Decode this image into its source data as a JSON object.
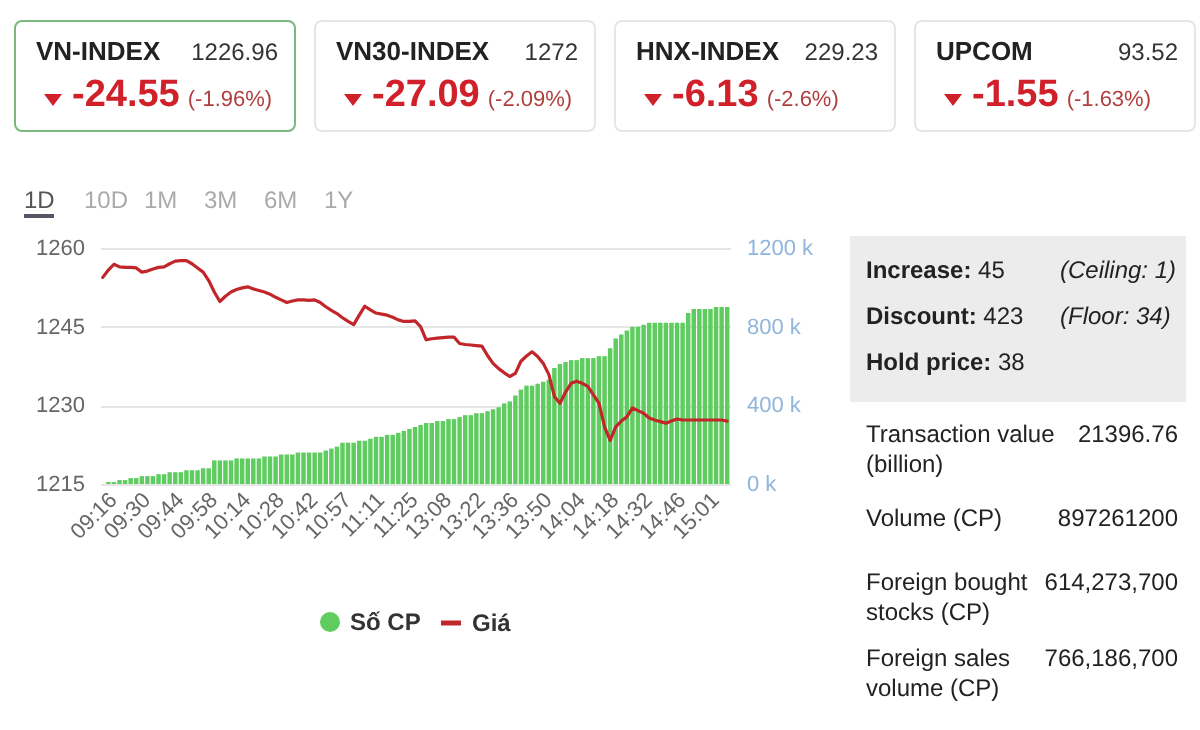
{
  "chart_data": [
    {
      "type": "other",
      "annotations": [
        "VN-INDEX",
        "1226.96",
        "-24.55",
        "(-1.96%)",
        "VN30-INDEX",
        "1272",
        "-27.09",
        "(-2.09%)",
        "HNX-INDEX",
        "229.23",
        "-6.13",
        "(-2.6%)",
        "UPCOM",
        "93.52",
        "-1.55",
        "(-1.63%)"
      ]
    },
    {
      "type": "other",
      "annotations": [
        "1D",
        "10D",
        "1M",
        "3M",
        "6M",
        "1Y"
      ]
    },
    {
      "type": "bar",
      "grid": "y",
      "legend": "bottom",
      "categories": [
        null,
        null,
        "09:16",
        null,
        null,
        null,
        null,
        null,
        "09:30",
        null,
        null,
        null,
        null,
        null,
        "09:44",
        null,
        null,
        null,
        null,
        null,
        "09:58",
        null,
        null,
        null,
        null,
        null,
        "10:14",
        null,
        null,
        null,
        null,
        null,
        "10:28",
        null,
        null,
        null,
        null,
        null,
        "10:42",
        null,
        null,
        null,
        null,
        null,
        "10:57",
        null,
        null,
        null,
        null,
        null,
        "11:11",
        null,
        null,
        null,
        null,
        null,
        "11:25",
        null,
        null,
        null,
        null,
        null,
        "13:08",
        null,
        null,
        null,
        null,
        null,
        "13:22",
        null,
        null,
        null,
        null,
        null,
        "13:36",
        null,
        null,
        null,
        null,
        null,
        "13:50",
        null,
        null,
        null,
        null,
        null,
        "14:04",
        null,
        null,
        null,
        null,
        null,
        "14:18",
        null,
        null,
        null,
        null,
        null,
        "14:32",
        null,
        null,
        null,
        null,
        null,
        "14:46",
        null,
        null,
        null,
        null,
        null,
        "15:01",
        null,
        null
      ],
      "ylim": [
        1215,
        1260
      ],
      "yticks": [
        1215,
        1230,
        1245,
        1260
      ],
      "y2lim": [
        0,
        1200
      ],
      "y2ticks": [
        {
          "value": 0,
          "label": "0 k"
        },
        {
          "value": 400,
          "label": "400 k"
        },
        {
          "value": 800,
          "label": "800 k"
        },
        {
          "value": 1200,
          "label": "1200 k"
        }
      ],
      "series": [
        {
          "name": "Số CP",
          "type": "bar",
          "axis": "y2",
          "color": "#5fcc5f",
          "values": [
            0,
            10,
            10,
            20,
            20,
            30,
            30,
            40,
            40,
            40,
            50,
            50,
            60,
            60,
            60,
            70,
            70,
            70,
            80,
            80,
            120,
            120,
            120,
            120,
            130,
            130,
            130,
            130,
            130,
            140,
            140,
            140,
            150,
            150,
            150,
            160,
            160,
            160,
            160,
            160,
            170,
            180,
            190,
            210,
            210,
            210,
            220,
            220,
            230,
            240,
            240,
            250,
            250,
            260,
            270,
            280,
            290,
            300,
            310,
            310,
            320,
            320,
            330,
            330,
            340,
            350,
            350,
            360,
            360,
            370,
            380,
            390,
            410,
            420,
            450,
            480,
            500,
            500,
            510,
            520,
            530,
            590,
            610,
            620,
            630,
            630,
            640,
            640,
            640,
            650,
            650,
            690,
            740,
            760,
            780,
            800,
            800,
            810,
            820,
            820,
            820,
            820,
            820,
            820,
            820,
            870,
            890,
            890,
            890,
            890,
            900,
            900,
            900
          ]
        },
        {
          "name": "Giá",
          "type": "line",
          "axis": "y",
          "color": "#c0262a",
          "values": [
            1254.4,
            1255.8,
            1256.9,
            1256.4,
            1256.3,
            1256.3,
            1256.2,
            1255.4,
            1255.6,
            1256.0,
            1256.3,
            1256.4,
            1257.0,
            1257.5,
            1257.6,
            1257.6,
            1257.0,
            1256.2,
            1255.4,
            1253.8,
            1251.6,
            1249.8,
            1250.8,
            1251.6,
            1252.1,
            1252.4,
            1252.6,
            1252.2,
            1251.9,
            1251.6,
            1251.2,
            1250.6,
            1250.1,
            1249.6,
            1249.9,
            1250.1,
            1250.1,
            1250.0,
            1250.1,
            1249.6,
            1248.8,
            1248.1,
            1247.5,
            1246.7,
            1246.0,
            1245.4,
            1247.2,
            1248.9,
            1248.2,
            1247.6,
            1247.4,
            1247.2,
            1246.8,
            1246.3,
            1246.0,
            1246.0,
            1246.1,
            1245.0,
            1242.5,
            1242.7,
            1242.8,
            1242.9,
            1243.0,
            1243.0,
            1241.8,
            1241.6,
            1241.5,
            1241.4,
            1241.3,
            1239.5,
            1238.0,
            1237.0,
            1236.2,
            1235.5,
            1236.1,
            1238.4,
            1239.4,
            1240.2,
            1239.3,
            1238.0,
            1235.9,
            1231.7,
            1230.4,
            1232.5,
            1234.2,
            1234.6,
            1234.2,
            1233.6,
            1232.0,
            1230.4,
            1225.9,
            1223.3,
            1225.9,
            1227.0,
            1227.8,
            1229.5,
            1229.0,
            1228.5,
            1227.6,
            1227.2,
            1226.9,
            1226.6,
            1227.0,
            1227.4,
            1227.2,
            1227.2,
            1227.2,
            1227.2,
            1227.2,
            1227.2,
            1227.2,
            1227.2,
            1227.0
          ]
        }
      ]
    },
    {
      "type": "other",
      "annotations": [
        "Increase:",
        "45",
        "(Ceiling: 1)",
        "Discount:",
        "423",
        "(Floor: 34)",
        "Hold price:",
        "38",
        "Transaction value (billion)",
        "21396.76",
        "Volume (CP)",
        "897261200",
        "Foreign bought stocks (CP)",
        "614,273,700",
        "Foreign sales volume (CP)",
        "766,186,700"
      ]
    }
  ]
}
